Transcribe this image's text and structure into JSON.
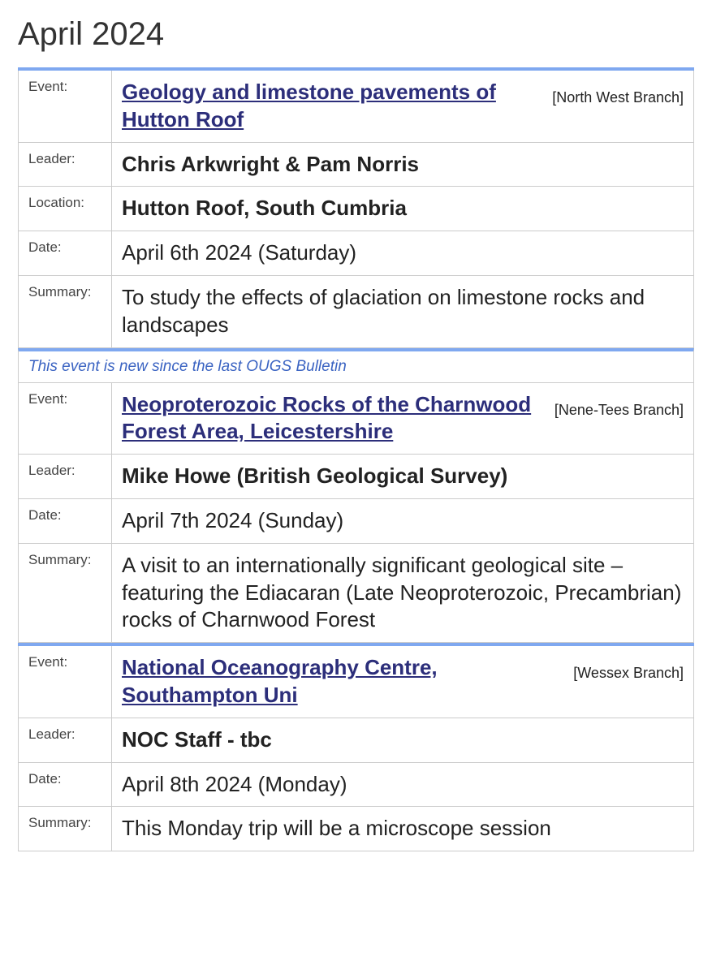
{
  "page_title": "April 2024",
  "labels": {
    "event": "Event:",
    "leader": "Leader:",
    "location": "Location:",
    "date": "Date:",
    "summary": "Summary:"
  },
  "new_banner_text": "This event is new since the last OUGS Bulletin",
  "events": [
    {
      "title": "Geology and limestone pavements of Hutton Roof",
      "branch": "[North West Branch]",
      "leader": "Chris Arkwright & Pam Norris",
      "location": "Hutton Roof, South Cumbria",
      "date": "April 6th 2024 (Saturday)",
      "summary": "To study the effects of glaciation on limestone rocks and landscapes",
      "is_new": false,
      "has_location": true
    },
    {
      "title": "Neoproterozoic Rocks of the Charnwood Forest Area, Leicestershire",
      "branch": "[Nene-Tees Branch]",
      "leader": "Mike Howe (British Geological Survey)",
      "date": "April 7th 2024 (Sunday)",
      "summary": "A visit to an internationally significant geological site – featuring the Ediacaran (Late Neoproterozoic, Precambrian) rocks of Charnwood Forest",
      "is_new": true,
      "has_location": false
    },
    {
      "title": "National Oceanography Centre, Southampton Uni",
      "branch": "[Wessex Branch]",
      "leader": "NOC Staff - tbc",
      "date": "April 8th 2024 (Monday)",
      "summary": "This Monday trip will be a microscope session",
      "is_new": false,
      "has_location": false
    }
  ],
  "colors": {
    "accent_border": "#7fa8f0",
    "cell_border": "#cccccc",
    "link": "#2c2e7a",
    "new_banner_text": "#3a63c2"
  }
}
